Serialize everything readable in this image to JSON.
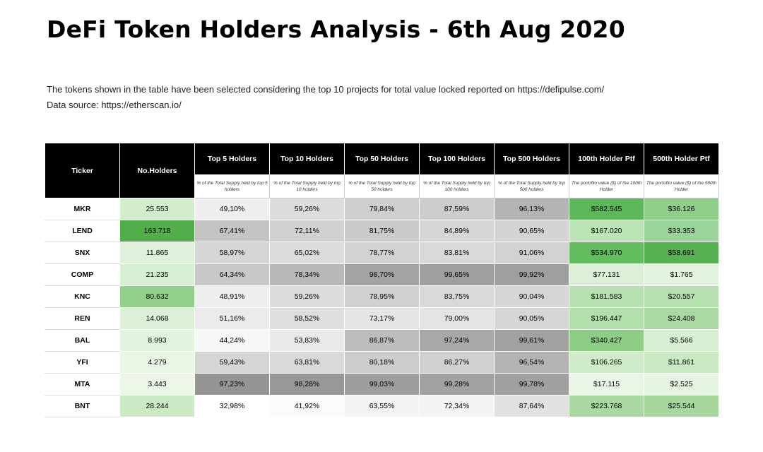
{
  "title": "DeFi Token Holders Analysis - 6th Aug 2020",
  "description": [
    "The tokens shown in the table have been selected considering the top 10 projects for total value locked reported on https://defipulse.com/",
    "Data source: https://etherscan.io/"
  ],
  "table": {
    "headers": [
      "Ticker",
      "No.Holders",
      "Top 5 Holders",
      "Top 10 Holders",
      "Top 50 Holders",
      "Top 100 Holders",
      "Top 500 Holders",
      "100th Holder Ptf",
      "500th Holder Ptf"
    ],
    "subheaders": [
      "% of the Total Supply held by top 5 holders",
      "% of the Total Supply held by top 10 holders",
      "% of the Total Supply held by top 50 holders",
      "% of the Total Supply held by top 100 holders",
      "% of the Total Supply held by top 500 holders",
      "The portoflio value ($) of the 100th Holder",
      "The portoflio value ($) of the 500th Holder"
    ],
    "rows": [
      {
        "cells": [
          "MKR",
          "25.553",
          "49,10%",
          "59,26%",
          "79,84%",
          "87,59%",
          "96,13%",
          "$582.545",
          "$36.126"
        ],
        "colors": [
          "#ffffff",
          "#d3ecce",
          "#efefef",
          "#dddddd",
          "#cfcfcf",
          "#cdcdcd",
          "#b4b4b4",
          "#5cb85a",
          "#8fcf8a"
        ]
      },
      {
        "cells": [
          "LEND",
          "163.718",
          "67,41%",
          "72,11%",
          "81,75%",
          "84,89%",
          "90,65%",
          "$167.020",
          "$33.353"
        ],
        "colors": [
          "#ffffff",
          "#52ad4a",
          "#c4c4c4",
          "#d1d1d1",
          "#cbcbcb",
          "#d6d6d6",
          "#d4d4d4",
          "#bde4b6",
          "#9ad49a"
        ]
      },
      {
        "cells": [
          "SNX",
          "11.865",
          "58,97%",
          "65,02%",
          "78,77%",
          "83,81%",
          "91,06%",
          "$534.970",
          "$58.691"
        ],
        "colors": [
          "#ffffff",
          "#dff1da",
          "#d6d6d6",
          "#dcdcdc",
          "#d2d2d2",
          "#d9d9d9",
          "#d2d2d2",
          "#63bc5e",
          "#58b253"
        ]
      },
      {
        "cells": [
          "COMP",
          "21.235",
          "64,34%",
          "78,34%",
          "96,70%",
          "99,65%",
          "99,92%",
          "$77.131",
          "$1.765"
        ],
        "colors": [
          "#ffffff",
          "#d6eed1",
          "#c8c8c8",
          "#b8b8b8",
          "#a3a3a3",
          "#a0a0a0",
          "#9f9f9f",
          "#dcf0d8",
          "#e3f3df"
        ]
      },
      {
        "cells": [
          "KNC",
          "80.632",
          "48,91%",
          "59,26%",
          "78,95%",
          "83,75%",
          "90,04%",
          "$181.583",
          "$20.557"
        ],
        "colors": [
          "#ffffff",
          "#92d08b",
          "#efefef",
          "#dddddd",
          "#d1d1d1",
          "#d9d9d9",
          "#d6d6d6",
          "#b8e1b1",
          "#b7e0b0"
        ]
      },
      {
        "cells": [
          "REN",
          "14.068",
          "51,16%",
          "58,52%",
          "73,17%",
          "79,00%",
          "90,05%",
          "$196.447",
          "$24.408"
        ],
        "colors": [
          "#ffffff",
          "#dcf0d7",
          "#ebebeb",
          "#dedede",
          "#e6e6e6",
          "#e4e4e4",
          "#d6d6d6",
          "#b2dfab",
          "#aadaa2"
        ]
      },
      {
        "cells": [
          "BAL",
          "8.993",
          "44,24%",
          "53,83%",
          "86,87%",
          "97,24%",
          "99,61%",
          "$340.427",
          "$5.566"
        ],
        "colors": [
          "#ffffff",
          "#e2f3de",
          "#f7f7f7",
          "#e9e9e9",
          "#bdbdbd",
          "#a8a8a8",
          "#a1a1a1",
          "#8dce86",
          "#d8efd3"
        ]
      },
      {
        "cells": [
          "YFI",
          "4.279",
          "59,43%",
          "63,81%",
          "80,18%",
          "86,27%",
          "96,54%",
          "$106.265",
          "$11.861"
        ],
        "colors": [
          "#ffffff",
          "#e9f6e5",
          "#d5d5d5",
          "#d9d9d9",
          "#cdcdcd",
          "#d0d0d0",
          "#b4b4b4",
          "#d0ebca",
          "#c9e9c3"
        ]
      },
      {
        "cells": [
          "MTA",
          "3.443",
          "97,23%",
          "98,28%",
          "99,03%",
          "99,28%",
          "99,78%",
          "$17.115",
          "$2.525"
        ],
        "colors": [
          "#ffffff",
          "#ecf7e8",
          "#959595",
          "#989898",
          "#9e9e9e",
          "#a2a2a2",
          "#a0a0a0",
          "#e9f6e5",
          "#e5f4e1"
        ]
      },
      {
        "cells": [
          "BNT",
          "28.244",
          "32,98%",
          "41,92%",
          "63,55%",
          "72,34%",
          "87,64%",
          "$223.768",
          "$25.544"
        ],
        "colors": [
          "#ffffff",
          "#cdeac7",
          "#ffffff",
          "#fbfbfb",
          "#f3f3f3",
          "#f3f3f3",
          "#e1e1e1",
          "#a9d9a1",
          "#a6d89e"
        ]
      }
    ]
  }
}
